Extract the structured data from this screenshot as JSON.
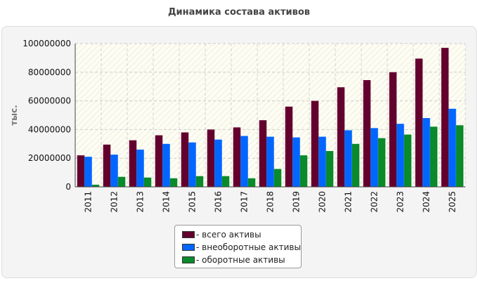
{
  "chart_data": {
    "type": "bar",
    "title": "Динамика состава активов",
    "ylabel": "тыс.",
    "xlabel": "",
    "ylim": [
      0,
      100000000
    ],
    "yticks": [
      "0",
      "20000000",
      "40000000",
      "60000000",
      "80000000",
      "100000000"
    ],
    "categories": [
      "2011",
      "2012",
      "2013",
      "2014",
      "2015",
      "2016",
      "2017",
      "2018",
      "2019",
      "2020",
      "2021",
      "2022",
      "2023",
      "2024",
      "2025"
    ],
    "grid": true,
    "legend_position": "bottom",
    "series": [
      {
        "name": "- всего активы",
        "color": "#63002e",
        "values": [
          22000000,
          29500000,
          32500000,
          36000000,
          38000000,
          40000000,
          41500000,
          46500000,
          56000000,
          60000000,
          69500000,
          74500000,
          80000000,
          89500000,
          97000000
        ]
      },
      {
        "name": "- внеоборотные активы",
        "color": "#0066ff",
        "values": [
          21000000,
          22500000,
          26000000,
          30000000,
          31000000,
          33000000,
          35500000,
          35000000,
          34500000,
          35000000,
          39500000,
          41000000,
          44000000,
          48000000,
          54500000
        ]
      },
      {
        "name": "- оборотные активы",
        "color": "#0a8a2a",
        "values": [
          1500000,
          7000000,
          6500000,
          6000000,
          7500000,
          7500000,
          6000000,
          12500000,
          22000000,
          25000000,
          30000000,
          34000000,
          36500000,
          42000000,
          43000000
        ]
      }
    ]
  }
}
